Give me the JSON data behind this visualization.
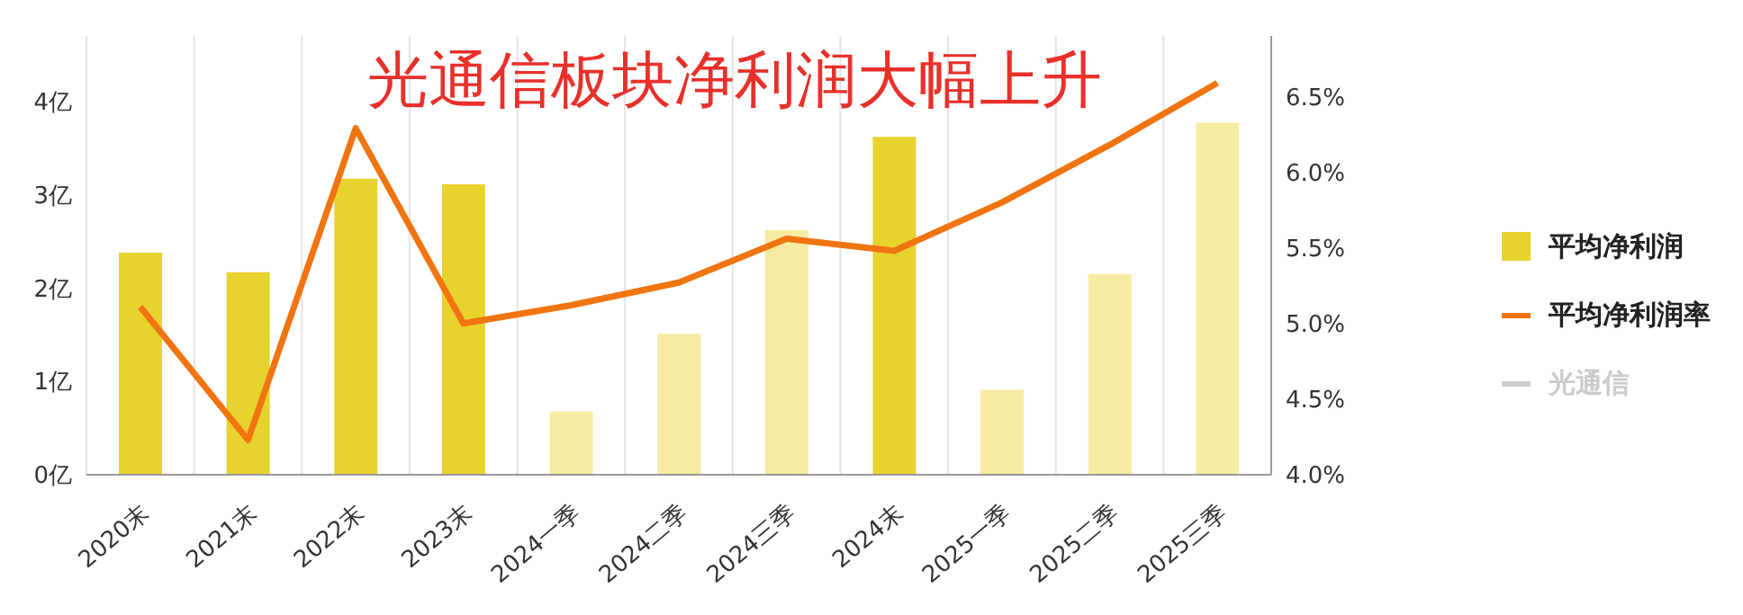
{
  "chart_data": {
    "type": "bar",
    "title": "光通信板块净利润大幅上升",
    "categories": [
      "2020末",
      "2021末",
      "2022末",
      "2023末",
      "2024一季",
      "2024二季",
      "2024三季",
      "2024末",
      "2025一季",
      "2025二季",
      "2025三季"
    ],
    "series": [
      {
        "name": "平均净利润",
        "color": "#e8d22e",
        "colors": [
          "#e8d22e",
          "#e8d22e",
          "#e8d22e",
          "#e8d22e",
          "#f5eba3",
          "#f5eba3",
          "#f5eba3",
          "#e8d22e",
          "#f5eba3",
          "#f5eba3",
          "#f5eba3"
        ],
        "values": [
          2.38,
          2.17,
          3.17,
          3.11,
          0.68,
          1.51,
          2.62,
          3.62,
          0.91,
          2.15,
          3.77
        ]
      },
      {
        "name": "平均净利润率",
        "type": "line",
        "axis": "y2",
        "color": "#f07410",
        "values": [
          5.11,
          4.23,
          6.29,
          5.0,
          5.12,
          5.27,
          5.56,
          5.48,
          5.8,
          6.18,
          6.59
        ]
      },
      {
        "name": "光通信",
        "type": "line",
        "axis": "y2",
        "color": "#cccccc",
        "values": [
          null,
          null,
          null,
          null,
          null,
          null,
          null,
          null,
          null,
          null,
          null
        ]
      }
    ],
    "ylim": [
      0,
      4.7
    ],
    "yticks": [
      {
        "value": 0,
        "label": "0亿"
      },
      {
        "value": 1,
        "label": "1亿"
      },
      {
        "value": 2,
        "label": "2亿"
      },
      {
        "value": 3,
        "label": "3亿"
      },
      {
        "value": 4,
        "label": "4亿"
      }
    ],
    "y2lim": [
      4.0,
      6.9
    ],
    "y2ticks": [
      {
        "value": 4.0,
        "label": "4.0%"
      },
      {
        "value": 4.5,
        "label": "4.5%"
      },
      {
        "value": 5.0,
        "label": "5.0%"
      },
      {
        "value": 5.5,
        "label": "5.5%"
      },
      {
        "value": 6.0,
        "label": "6.0%"
      },
      {
        "value": 6.5,
        "label": "6.5%"
      }
    ],
    "grid": "x",
    "legend": "right",
    "marker": "none",
    "line_style": "solid"
  }
}
